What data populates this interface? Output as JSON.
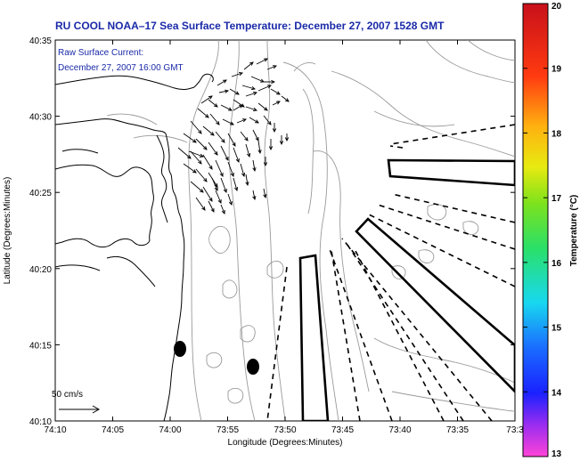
{
  "title": "RU COOL  NOAA–17  Sea Surface Temperature:  December 27, 2007 1528 GMT",
  "inset": {
    "line1": "Raw Surface Current:",
    "line2": "December 27, 2007 16:00 GMT"
  },
  "scale_label": "50 cm/s",
  "map": {
    "xlabel": "Longitude (Degrees:Minutes)",
    "ylabel": "Latitude (Degrees:Minutes)",
    "lon_ticks": [
      "74:10",
      "74:05",
      "74:00",
      "73:55",
      "73:50",
      "73:45",
      "73:40",
      "73:35",
      "73:3"
    ],
    "lat_ticks": [
      "40:35",
      "40:30",
      "40:25",
      "40:20",
      "40:15",
      "40:10"
    ]
  },
  "colorbar": {
    "label": "Temperature (°C)",
    "ticks": [
      "20",
      "19",
      "18",
      "17",
      "16",
      "15",
      "14",
      "13"
    ],
    "min": 13,
    "max": 20
  },
  "colors": {
    "title": "#1a2aa8",
    "contour": "#9a9a9a",
    "coast": "#000000"
  },
  "icons": {
    "vectors": "current-vector-arrows",
    "markers": "buoy-markers"
  }
}
